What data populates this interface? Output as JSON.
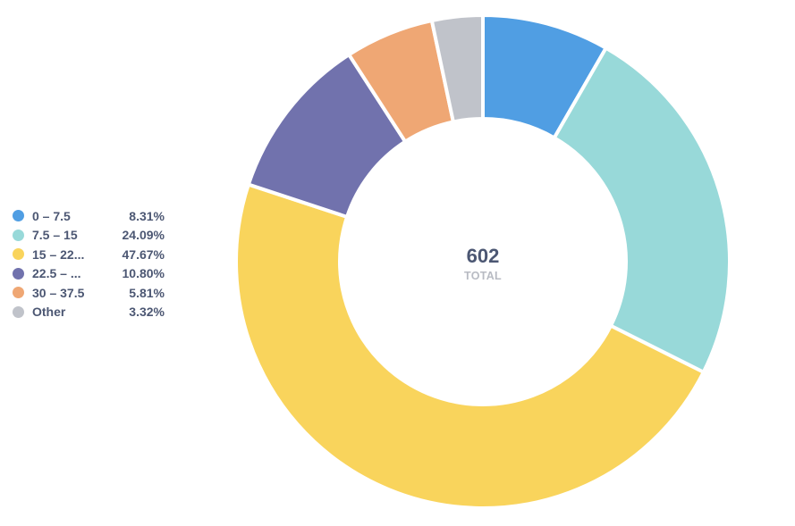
{
  "chart_data": {
    "type": "pie",
    "donut": true,
    "total": "602",
    "total_caption": "TOTAL",
    "legend_position": "left",
    "slices": [
      {
        "label": "0 – 7.5",
        "percent_label": "8.31%",
        "value": 8.31,
        "color": "#509ee3"
      },
      {
        "label": "7.5 – 15",
        "percent_label": "24.09%",
        "value": 24.09,
        "color": "#98d9d9"
      },
      {
        "label": "15 – 22...",
        "percent_label": "47.67%",
        "value": 47.67,
        "color": "#f9d45c"
      },
      {
        "label": "22.5 – ...",
        "percent_label": "10.80%",
        "value": 10.8,
        "color": "#7172ad"
      },
      {
        "label": "30 – 37.5",
        "percent_label": "5.81%",
        "value": 5.81,
        "color": "#efa774"
      },
      {
        "label": "Other",
        "percent_label": "3.32%",
        "value": 3.32,
        "color": "#c0c3ca"
      }
    ]
  }
}
